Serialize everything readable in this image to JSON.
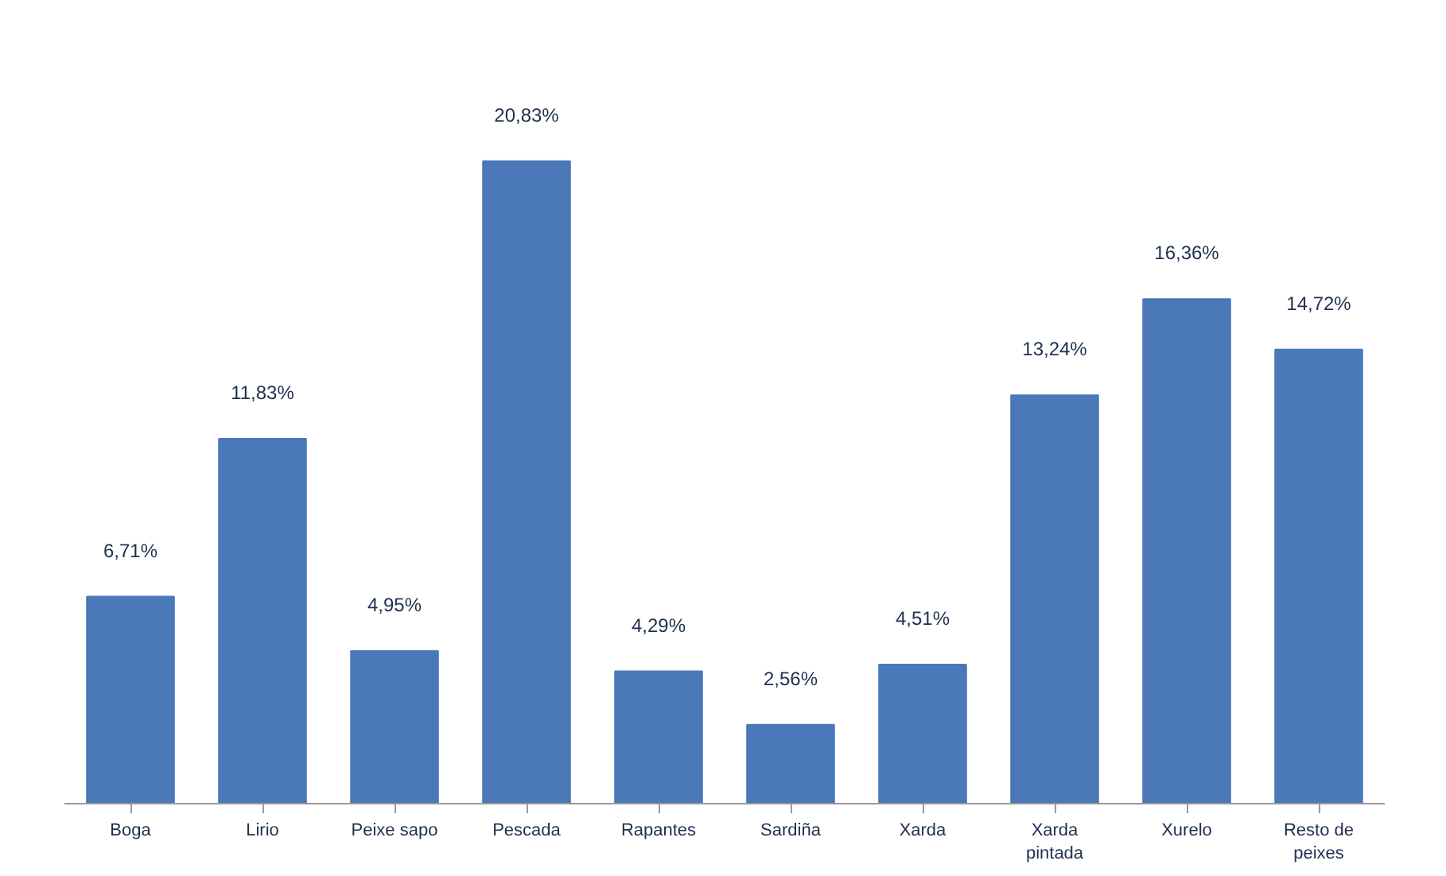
{
  "chart_data": {
    "type": "bar",
    "categories": [
      "Boga",
      "Lirio",
      "Peixe sapo",
      "Pescada",
      "Rapantes",
      "Sardiña",
      "Xarda",
      "Xarda\npintada",
      "Xurelo",
      "Resto de\npeixes"
    ],
    "values": [
      6.71,
      11.83,
      4.95,
      20.83,
      4.29,
      2.56,
      4.51,
      13.24,
      16.36,
      14.72
    ],
    "value_labels": [
      "6,71%",
      "11,83%",
      "4,95%",
      "20,83%",
      "4,29%",
      "2,56%",
      "4,51%",
      "13,24%",
      "16,36%",
      "14,72%"
    ],
    "color": "#4a78b8",
    "grid": false
  }
}
